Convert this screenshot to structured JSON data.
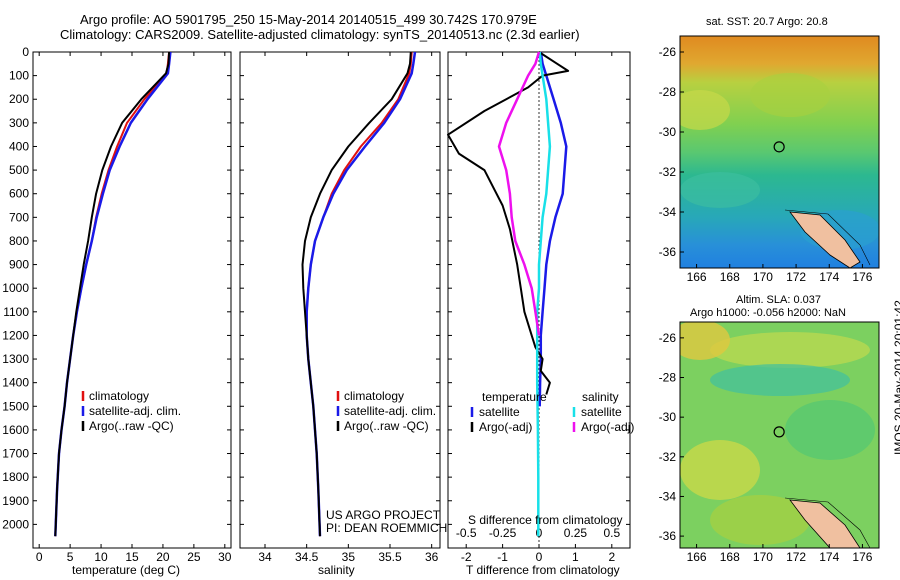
{
  "header": {
    "line1": "Argo profile: AO 5901795_250 15-May-2014 20140515_499 30.742S 170.979E",
    "line2": "Climatology: CARS2009. Satellite-adjusted climatology: synTS_20140513.nc (2.3d earlier)"
  },
  "side_stamp": "IMOS 20-May-2014 20:01:42",
  "project": {
    "line1": "US ARGO PROJECT",
    "line2": "PI: DEAN ROEMMICH"
  },
  "colors": {
    "climatology": "#e01010",
    "satellite": "#1a1ae8",
    "argo": "#000000",
    "sal_sat": "#18e0e8",
    "sal_argo": "#ee10ee"
  },
  "chart_data": [
    {
      "type": "line",
      "id": "temperature",
      "xlabel": "temperature (deg C)",
      "ylim": [
        2100,
        0
      ],
      "xlim": [
        -1,
        31
      ],
      "xticks": [
        0,
        5,
        10,
        15,
        20,
        25,
        30
      ],
      "yticks": [
        0,
        100,
        200,
        300,
        400,
        500,
        600,
        700,
        800,
        900,
        1000,
        1100,
        1200,
        1300,
        1400,
        1500,
        1600,
        1700,
        1800,
        1900,
        2000
      ],
      "legend": [
        "climatology",
        "satellite-adj. clim.",
        "Argo(..raw -QC)"
      ],
      "series": [
        {
          "name": "climatology",
          "color": "#e01010",
          "x": [
            21,
            20.8,
            20.6,
            17,
            14.2,
            12.6,
            11.2,
            10.1,
            9.2,
            8.5,
            7.6,
            6.8,
            6.1,
            5.5,
            5,
            4.5,
            4.1,
            3.6,
            3.2,
            2.9,
            2.6
          ],
          "y": [
            0,
            50,
            90,
            200,
            300,
            400,
            500,
            600,
            700,
            800,
            900,
            1000,
            1100,
            1200,
            1300,
            1400,
            1500,
            1600,
            1700,
            1850,
            2050
          ]
        },
        {
          "name": "satellite-adj. clim.",
          "color": "#1a1ae8",
          "x": [
            21.2,
            21,
            20.8,
            17.5,
            14.8,
            13,
            11.4,
            10.3,
            9.3,
            8.5,
            7.6,
            6.8,
            6.1,
            5.5,
            5,
            4.5,
            4.1,
            3.6,
            3.2,
            2.9,
            2.6
          ],
          "y": [
            0,
            50,
            90,
            200,
            300,
            400,
            500,
            600,
            700,
            800,
            900,
            1000,
            1100,
            1200,
            1300,
            1400,
            1500,
            1600,
            1700,
            1850,
            2050
          ]
        },
        {
          "name": "Argo(..raw -QC)",
          "color": "#000000",
          "x": [
            21,
            20.9,
            20.5,
            16.5,
            13.4,
            11.6,
            10.2,
            9.2,
            8.5,
            7.9,
            7.2,
            6.6,
            6,
            5.5,
            5,
            4.5,
            4.1,
            3.6,
            3.2,
            2.9,
            2.6
          ],
          "y": [
            0,
            50,
            90,
            200,
            300,
            400,
            500,
            600,
            700,
            800,
            900,
            1000,
            1100,
            1200,
            1300,
            1400,
            1500,
            1600,
            1700,
            1850,
            2050
          ]
        }
      ]
    },
    {
      "type": "line",
      "id": "salinity",
      "xlabel": "salinity",
      "ylim": [
        2100,
        0
      ],
      "xlim": [
        33.7,
        36.1
      ],
      "xticks": [
        34,
        34.5,
        35,
        35.5,
        36
      ],
      "legend": [
        "climatology",
        "satellite-adj. clim.",
        "Argo(..raw -QC)"
      ],
      "series": [
        {
          "name": "climatology",
          "color": "#e01010",
          "x": [
            35.76,
            35.75,
            35.73,
            35.6,
            35.4,
            35.15,
            34.95,
            34.8,
            34.7,
            34.6,
            34.55,
            34.52,
            34.5,
            34.5,
            34.52,
            34.55,
            34.58,
            34.6,
            34.62,
            34.64,
            34.66
          ],
          "y": [
            0,
            50,
            90,
            200,
            300,
            400,
            500,
            600,
            700,
            800,
            900,
            1000,
            1100,
            1200,
            1300,
            1400,
            1500,
            1600,
            1700,
            1850,
            2050
          ]
        },
        {
          "name": "satellite-adj. clim.",
          "color": "#1a1ae8",
          "x": [
            35.8,
            35.78,
            35.76,
            35.62,
            35.43,
            35.2,
            34.98,
            34.82,
            34.7,
            34.6,
            34.55,
            34.52,
            34.5,
            34.5,
            34.52,
            34.55,
            34.58,
            34.6,
            34.62,
            34.64,
            34.66
          ],
          "y": [
            0,
            50,
            90,
            200,
            300,
            400,
            500,
            600,
            700,
            800,
            900,
            1000,
            1100,
            1200,
            1300,
            1400,
            1500,
            1600,
            1700,
            1850,
            2050
          ]
        },
        {
          "name": "Argo(..raw -QC)",
          "color": "#000000",
          "x": [
            35.75,
            35.74,
            35.71,
            35.52,
            35.25,
            35,
            34.8,
            34.66,
            34.55,
            34.48,
            34.45,
            34.46,
            34.48,
            34.5,
            34.52,
            34.55,
            34.58,
            34.6,
            34.62,
            34.64,
            34.66
          ],
          "y": [
            0,
            50,
            90,
            200,
            300,
            400,
            500,
            600,
            700,
            800,
            900,
            1000,
            1100,
            1200,
            1300,
            1400,
            1500,
            1600,
            1700,
            1850,
            2050
          ]
        }
      ]
    },
    {
      "type": "line",
      "id": "difference",
      "xlabel": "T difference from climatology",
      "xlabel_top": "S difference from climatology",
      "xlim": [
        -2.5,
        2.5
      ],
      "xticks": [
        -2,
        -1,
        0,
        1,
        2
      ],
      "xticklabels_top": [
        "-0.5",
        "-0.25",
        "0",
        "0.25",
        "0.5"
      ],
      "xticks_top_pos": [
        -2,
        -1,
        0,
        1,
        2
      ],
      "legend_temperature": {
        "title": "temperature",
        "items": [
          "satellite",
          "Argo(-adj)"
        ]
      },
      "legend_salinity": {
        "title": "salinity",
        "items": [
          "satellite",
          "Argo(-adj)"
        ]
      },
      "series": [
        {
          "name": "T satellite",
          "color": "#1a1ae8",
          "x": [
            0.05,
            0.1,
            0.2,
            0.4,
            0.6,
            0.75,
            0.7,
            0.65,
            0.45,
            0.3,
            0.2,
            0.15,
            0.1,
            0.05,
            0.05,
            0.03,
            0.02
          ],
          "y": [
            0,
            50,
            100,
            200,
            300,
            400,
            500,
            600,
            700,
            800,
            900,
            1000,
            1100,
            1200,
            1300,
            1400,
            1500
          ]
        },
        {
          "name": "T Argo(-adj)",
          "color": "#000000",
          "x": [
            0,
            0.5,
            0.8,
            0.1,
            -0.3,
            -1.5,
            -2.5,
            -2.2,
            -1.5,
            -1.3,
            -1.0,
            -0.8,
            -0.6,
            -0.5,
            -0.4,
            -0.2,
            -0.1,
            0.1,
            0.05,
            0.3,
            0.2
          ],
          "y": [
            0,
            50,
            80,
            100,
            150,
            250,
            350,
            430,
            500,
            560,
            650,
            750,
            900,
            1000,
            1100,
            1200,
            1250,
            1300,
            1350,
            1400,
            1450
          ]
        },
        {
          "name": "S satellite",
          "color": "#18e0e8",
          "x": [
            0.02,
            0.05,
            0.1,
            0.2,
            0.25,
            0.3,
            0.25,
            0.2,
            0.1,
            0.05,
            0,
            0,
            -0.05,
            -0.05,
            -0.05,
            -0.03,
            -0.02,
            -0.02
          ],
          "y": [
            0,
            50,
            100,
            200,
            300,
            400,
            500,
            600,
            700,
            800,
            900,
            1000,
            1100,
            1200,
            1400,
            1600,
            1800,
            2050
          ]
        },
        {
          "name": "S Argo(-adj)",
          "color": "#ee10ee",
          "x": [
            0,
            -0.1,
            -0.3,
            -0.6,
            -0.9,
            -1.1,
            -0.9,
            -0.8,
            -0.75,
            -0.65,
            -0.4,
            -0.2,
            -0.1,
            0
          ],
          "y": [
            0,
            50,
            100,
            200,
            300,
            400,
            500,
            600,
            700,
            800,
            900,
            1000,
            1100,
            1200
          ]
        }
      ]
    },
    {
      "type": "heatmap",
      "id": "sst_map",
      "title": "sat. SST: 20.7  Argo: 20.8",
      "xticks": [
        166,
        168,
        170,
        172,
        174,
        176
      ],
      "yticks": [
        -26,
        -28,
        -30,
        -32,
        -34,
        -36
      ],
      "marker": {
        "lon": 170.979,
        "lat": -30.742
      }
    },
    {
      "type": "heatmap",
      "id": "sla_map",
      "title_line1": "Altim. SLA: 0.037",
      "title_line2": "Argo h1000: -0.056 h2000: NaN",
      "xticks": [
        166,
        168,
        170,
        172,
        174,
        176
      ],
      "yticks": [
        -26,
        -28,
        -30,
        -32,
        -34,
        -36
      ],
      "marker": {
        "lon": 170.979,
        "lat": -30.742
      }
    }
  ]
}
